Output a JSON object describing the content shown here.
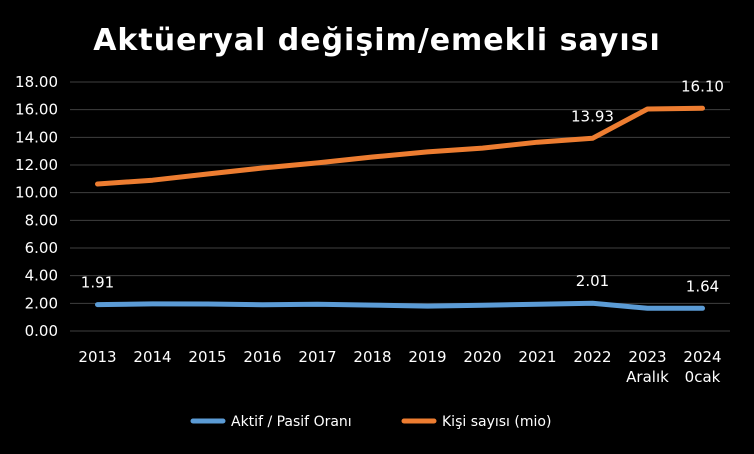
{
  "chart_data": {
    "type": "line",
    "title": "Aktüeryal değişim/emekli sayısı",
    "xlabel": "",
    "ylabel": "",
    "categories": [
      [
        "2013"
      ],
      [
        "2014"
      ],
      [
        "2015"
      ],
      [
        "2016"
      ],
      [
        "2017"
      ],
      [
        "2018"
      ],
      [
        "2019"
      ],
      [
        "2020"
      ],
      [
        "2021"
      ],
      [
        "2022"
      ],
      [
        "2023",
        "Aralık"
      ],
      [
        "2024",
        "0cak"
      ]
    ],
    "y_ticks": [
      "0.00",
      "2.00",
      "4.00",
      "6.00",
      "8.00",
      "10.00",
      "12.00",
      "14.00",
      "16.00",
      "18.00"
    ],
    "ylim": [
      0,
      18
    ],
    "grid": true,
    "legend_position": "bottom",
    "series": [
      {
        "name": "Aktif / Pasif Oranı",
        "color": "#5b9bd5",
        "values": [
          1.91,
          1.96,
          1.95,
          1.9,
          1.94,
          1.87,
          1.8,
          1.86,
          1.94,
          2.01,
          1.64,
          1.64
        ],
        "labels": [
          {
            "index": 0,
            "text": "1.91"
          },
          {
            "index": 9,
            "text": "2.01"
          },
          {
            "index": 11,
            "text": "1.64"
          }
        ]
      },
      {
        "name": "Kişi sayısı (mio)",
        "color": "#ed7d31",
        "values": [
          10.63,
          10.9,
          11.35,
          11.78,
          12.15,
          12.58,
          12.95,
          13.22,
          13.65,
          13.93,
          16.05,
          16.1
        ],
        "labels": [
          {
            "index": 9,
            "text": "13.93"
          },
          {
            "index": 11,
            "text": "16.10"
          }
        ]
      }
    ]
  }
}
